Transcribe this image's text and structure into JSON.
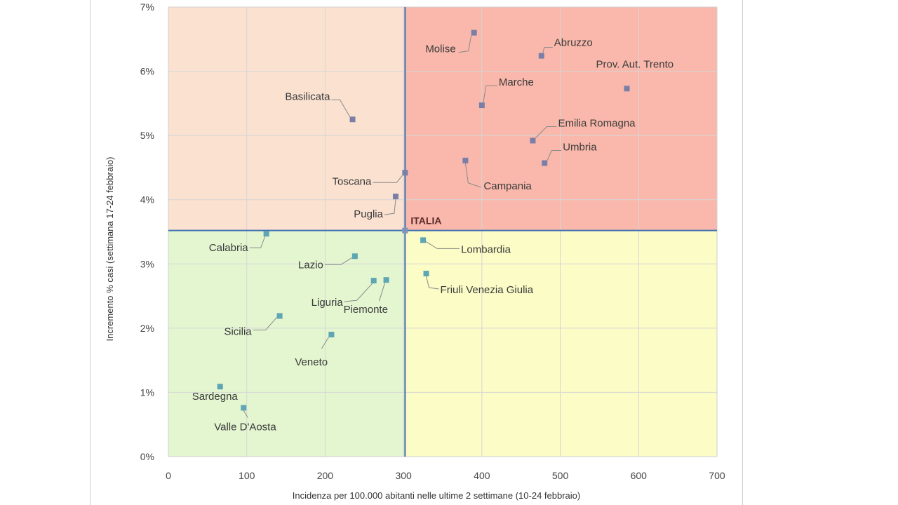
{
  "chart_data": {
    "type": "scatter",
    "title": "",
    "xlabel": "Incidenza per 100.000 abitanti nelle ultime 2 settimane (10-24 febbraio)",
    "ylabel": "Incremento % casi (settimana 17-24 febbraio)",
    "xlim": [
      0,
      700
    ],
    "ylim": [
      0,
      7
    ],
    "x_ticks": [
      "0",
      "100",
      "200",
      "300",
      "400",
      "500",
      "600",
      "700"
    ],
    "y_ticks": [
      "0%",
      "1%",
      "2%",
      "3%",
      "4%",
      "5%",
      "6%",
      "7%"
    ],
    "grid": true,
    "reference": {
      "label": "ITALIA",
      "x": 302,
      "y": 3.52
    },
    "quadrant_colors": {
      "top_left": "#fae1d0",
      "top_right": "#f9b8ab",
      "bottom_left": "#e3f6d0",
      "bottom_right": "#fcfcc6"
    },
    "marker_colors": {
      "upper": "#7b7fa8",
      "lower": "#5fa6b4"
    },
    "points": [
      {
        "name": "Molise",
        "x": 390,
        "y": 6.6
      },
      {
        "name": "Abruzzo",
        "x": 476,
        "y": 6.24
      },
      {
        "name": "Prov. Aut. Trento",
        "x": 585,
        "y": 5.73
      },
      {
        "name": "Marche",
        "x": 400,
        "y": 5.47
      },
      {
        "name": "Basilicata",
        "x": 235,
        "y": 5.25
      },
      {
        "name": "Emilia Romagna",
        "x": 465,
        "y": 4.92
      },
      {
        "name": "Umbria",
        "x": 480,
        "y": 4.57
      },
      {
        "name": "Campania",
        "x": 379,
        "y": 4.61
      },
      {
        "name": "Toscana",
        "x": 302,
        "y": 4.42
      },
      {
        "name": "Puglia",
        "x": 290,
        "y": 4.05
      },
      {
        "name": "Calabria",
        "x": 125,
        "y": 3.47
      },
      {
        "name": "Lombardia",
        "x": 325,
        "y": 3.37
      },
      {
        "name": "Lazio",
        "x": 238,
        "y": 3.12
      },
      {
        "name": "Friuli Venezia Giulia",
        "x": 329,
        "y": 2.85
      },
      {
        "name": "Liguria",
        "x": 262,
        "y": 2.74
      },
      {
        "name": "Piemonte",
        "x": 278,
        "y": 2.75
      },
      {
        "name": "Sicilia",
        "x": 142,
        "y": 2.19
      },
      {
        "name": "Veneto",
        "x": 208,
        "y": 1.9
      },
      {
        "name": "Sardegna",
        "x": 66,
        "y": 1.09
      },
      {
        "name": "Valle D'Aosta",
        "x": 96,
        "y": 0.76
      }
    ]
  }
}
